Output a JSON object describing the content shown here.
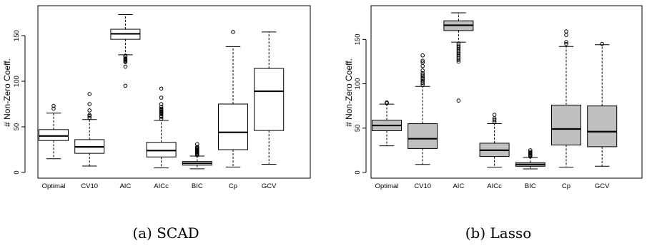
{
  "chart_data": [
    {
      "type": "box",
      "caption": "(a) SCAD",
      "ylabel": "# Non-Zero Coeff.",
      "ylim": [
        0,
        175
      ],
      "yticks": [
        0,
        50,
        100,
        150
      ],
      "fill": "#ffffff",
      "categories": [
        "Optimal",
        "CV10",
        "AIC",
        "AICc",
        "BIC",
        "Cp",
        "GCV"
      ],
      "boxes": [
        {
          "label": "Optimal",
          "whisker_low": 15,
          "q1": 35,
          "median": 40,
          "q3": 47,
          "whisker_high": 65,
          "outliers": [
            70,
            73
          ]
        },
        {
          "label": "CV10",
          "whisker_low": 7,
          "q1": 21,
          "median": 28,
          "q3": 36,
          "whisker_high": 58,
          "outliers": [
            60,
            62,
            63,
            68,
            75,
            86
          ]
        },
        {
          "label": "AIC",
          "whisker_low": 129,
          "q1": 146,
          "median": 152,
          "q3": 157,
          "whisker_high": 173,
          "outliers": [
            128,
            127,
            125,
            124,
            123,
            122,
            121,
            116,
            95
          ]
        },
        {
          "label": "AICc",
          "whisker_low": 5,
          "q1": 17,
          "median": 24,
          "q3": 33,
          "whisker_high": 57,
          "outliers": [
            59,
            61,
            62,
            64,
            65,
            66,
            67,
            68,
            69,
            70,
            72,
            75,
            82,
            92
          ]
        },
        {
          "label": "BIC",
          "whisker_low": 4,
          "q1": 8,
          "median": 10,
          "q3": 12,
          "whisker_high": 18,
          "outliers": [
            19,
            20,
            21,
            22,
            23,
            24,
            25,
            26,
            27,
            28,
            31
          ]
        },
        {
          "label": "Cp",
          "whisker_low": 6,
          "q1": 25,
          "median": 44,
          "q3": 75,
          "whisker_high": 138,
          "outliers": [
            154
          ]
        },
        {
          "label": "GCV",
          "whisker_low": 9,
          "q1": 46,
          "median": 89,
          "q3": 114,
          "whisker_high": 154,
          "outliers": []
        }
      ]
    },
    {
      "type": "box",
      "caption": "(b) Lasso",
      "ylabel": "# Non-Zero Coeff.",
      "ylim": [
        0,
        180
      ],
      "yticks": [
        0,
        50,
        100,
        150
      ],
      "fill": "#c0c0c0",
      "categories": [
        "Optimal",
        "CV10",
        "AIC",
        "AICc",
        "BIC",
        "Cp",
        "GCV"
      ],
      "boxes": [
        {
          "label": "Optimal",
          "whisker_low": 30,
          "q1": 47,
          "median": 53,
          "q3": 59,
          "whisker_high": 77,
          "outliers": [
            78,
            79
          ]
        },
        {
          "label": "CV10",
          "whisker_low": 9,
          "q1": 27,
          "median": 38,
          "q3": 55,
          "whisker_high": 97,
          "outliers": [
            99,
            101,
            103,
            105,
            106,
            108,
            110,
            112,
            115,
            120,
            124,
            126,
            132
          ]
        },
        {
          "label": "AIC",
          "whisker_low": 147,
          "q1": 160,
          "median": 166,
          "q3": 171,
          "whisker_high": 180,
          "outliers": [
            145,
            143,
            141,
            139,
            137,
            135,
            133,
            131,
            129,
            127,
            125,
            81
          ]
        },
        {
          "label": "AICc",
          "whisker_low": 6,
          "q1": 18,
          "median": 25,
          "q3": 33,
          "whisker_high": 55,
          "outliers": [
            57,
            59,
            61,
            65
          ]
        },
        {
          "label": "BIC",
          "whisker_low": 4,
          "q1": 7,
          "median": 9,
          "q3": 11,
          "whisker_high": 17,
          "outliers": [
            18,
            19,
            20,
            21,
            22,
            23,
            25
          ]
        },
        {
          "label": "Cp",
          "whisker_low": 6,
          "q1": 31,
          "median": 49,
          "q3": 76,
          "whisker_high": 142,
          "outliers": [
            145,
            147,
            155,
            159
          ]
        },
        {
          "label": "GCV",
          "whisker_low": 7,
          "q1": 29,
          "median": 46,
          "q3": 75,
          "whisker_high": 144,
          "outliers": [
            145
          ]
        }
      ]
    }
  ]
}
